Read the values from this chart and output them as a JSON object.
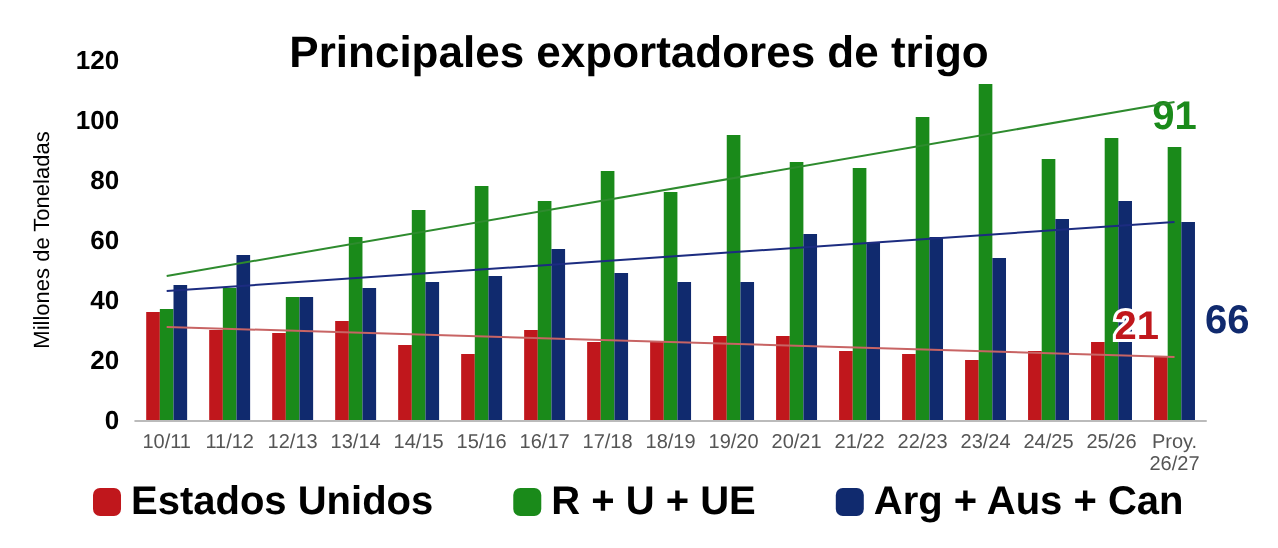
{
  "chart_data": {
    "type": "bar",
    "title": "Principales exportadores de trigo",
    "ylabel": "Millones de Toneladas",
    "categories": [
      "10/11",
      "11/12",
      "12/13",
      "13/14",
      "14/15",
      "15/16",
      "16/17",
      "17/18",
      "18/19",
      "19/20",
      "20/21",
      "21/22",
      "22/23",
      "23/24",
      "24/25",
      "25/26",
      "Proy.\n26/27"
    ],
    "series": [
      {
        "name": "Estados Unidos",
        "color": "#c0171c",
        "values": [
          36,
          30,
          29,
          33,
          25,
          22,
          30,
          26,
          26,
          28,
          28,
          23,
          22,
          20,
          23,
          26,
          21
        ],
        "value_labels": [
          null,
          null,
          null,
          null,
          null,
          null,
          null,
          null,
          null,
          null,
          null,
          null,
          null,
          null,
          null,
          null,
          "21"
        ]
      },
      {
        "name": "R + U + UE",
        "color": "#1a8a1a",
        "values": [
          37,
          44,
          41,
          61,
          70,
          78,
          73,
          83,
          76,
          95,
          86,
          84,
          101,
          112,
          87,
          94,
          91
        ],
        "value_labels": [
          null,
          null,
          null,
          null,
          null,
          null,
          null,
          null,
          null,
          null,
          null,
          null,
          null,
          null,
          null,
          null,
          "91"
        ]
      },
      {
        "name": "Arg + Aus + Can",
        "color": "#102a6e",
        "values": [
          45,
          55,
          41,
          44,
          46,
          48,
          57,
          49,
          46,
          46,
          62,
          59,
          61,
          54,
          67,
          73,
          66
        ],
        "value_labels": [
          null,
          null,
          null,
          null,
          null,
          null,
          null,
          null,
          null,
          null,
          null,
          null,
          null,
          null,
          null,
          null,
          "66"
        ]
      },
      {
        "type": "line",
        "color": "#c86464",
        "x": [
          "10/11",
          "Proy.\n26/27"
        ],
        "values": [
          31,
          21
        ]
      },
      {
        "type": "line",
        "color": "#2e8b2e",
        "x": [
          "10/11",
          "Proy.\n26/27"
        ],
        "values": [
          48,
          106
        ]
      },
      {
        "type": "line",
        "color": "#1c2c80",
        "x": [
          "10/11",
          "Proy.\n26/27"
        ],
        "values": [
          43,
          66
        ]
      }
    ],
    "ylim": [
      0,
      120
    ],
    "yticks": [
      0,
      20,
      40,
      60,
      80,
      100,
      120
    ],
    "grid": false,
    "legend": "bottom"
  }
}
